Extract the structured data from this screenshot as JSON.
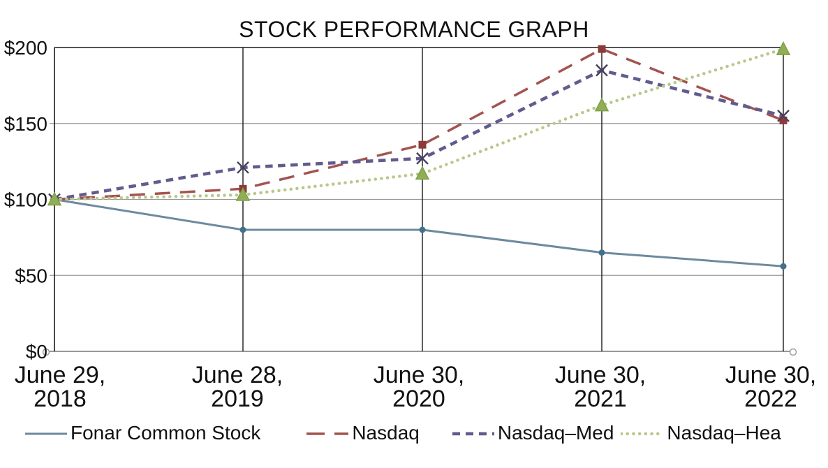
{
  "chart_data": {
    "type": "line",
    "title": "STOCK PERFORMANCE GRAPH",
    "categories": [
      "June 29, 2018",
      "June 28, 2019",
      "June 30, 2020",
      "June 30, 2021",
      "June 30, 2022"
    ],
    "y_ticks": [
      "$0",
      "$50",
      "$100",
      "$150",
      "$200"
    ],
    "y_tick_values": [
      0,
      50,
      100,
      150,
      200
    ],
    "ylim": [
      0,
      200
    ],
    "grid": true,
    "legend_position": "bottom",
    "series": [
      {
        "name": "Fonar Common Stock",
        "values": [
          100,
          80,
          80,
          65,
          56
        ],
        "color": "#6d8a9e",
        "marker_color": "#43708d",
        "line_style": "solid",
        "marker": "circle"
      },
      {
        "name": "Nasdaq",
        "values": [
          100,
          107,
          136,
          199,
          152
        ],
        "color": "#a45350",
        "marker_color": "#8e3a38",
        "line_style": "long-dash",
        "marker": "square"
      },
      {
        "name": "Nasdaq–Med",
        "values": [
          100,
          121,
          127,
          185,
          155
        ],
        "color": "#615c8c",
        "marker_color": "#45405e",
        "line_style": "dash",
        "marker": "x"
      },
      {
        "name": "Nasdaq–Hea",
        "values": [
          100,
          103,
          117,
          162,
          199
        ],
        "color": "#b7c98a",
        "marker_color": "#90ae55",
        "marker_edge_color": "#7fa046",
        "line_style": "dotted",
        "marker": "triangle"
      }
    ],
    "axis_end_markers": "open-circles-at-zero-line-ends"
  }
}
